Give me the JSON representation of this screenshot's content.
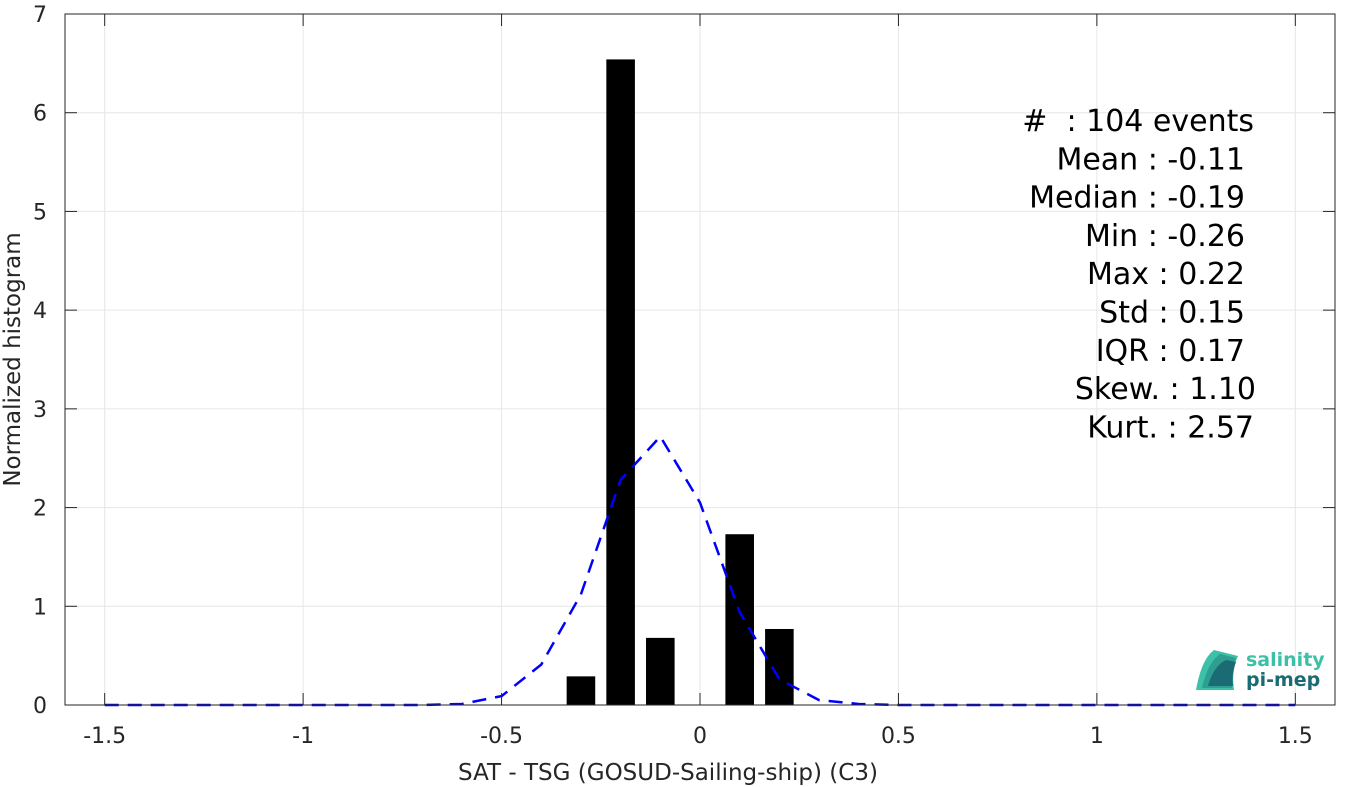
{
  "chart_data": {
    "type": "bar",
    "xlabel": "SAT - TSG (GOSUD-Sailing-ship) (C3)",
    "ylabel": "Normalized histogram",
    "xlim": [
      -1.6,
      1.6
    ],
    "ylim": [
      0,
      7
    ],
    "xticks": [
      -1.5,
      -1,
      -0.5,
      0,
      0.5,
      1,
      1.5
    ],
    "xtick_labels": [
      "-1.5",
      "-1",
      "-0.5",
      "0",
      "0.5",
      "1",
      "1.5"
    ],
    "yticks": [
      0,
      1,
      2,
      3,
      4,
      5,
      6,
      7
    ],
    "ytick_labels": [
      "0",
      "1",
      "2",
      "3",
      "4",
      "5",
      "6",
      "7"
    ],
    "grid": true,
    "bin_width": 0.1,
    "bars": {
      "x": [
        -0.3,
        -0.2,
        -0.1,
        0.0,
        0.1,
        0.2
      ],
      "values": [
        0.29,
        6.54,
        0.68,
        0.0,
        1.73,
        0.77
      ],
      "color": "#000000"
    },
    "fit_curve": {
      "style": "dashed",
      "color": "#0000ff",
      "x": [
        -1.5,
        -1.4,
        -1.3,
        -1.2,
        -1.1,
        -1.0,
        -0.9,
        -0.8,
        -0.7,
        -0.6,
        -0.5,
        -0.4,
        -0.3,
        -0.2,
        -0.1,
        0.0,
        0.1,
        0.2,
        0.3,
        0.4,
        0.5,
        0.6,
        0.7,
        0.8,
        0.9,
        1.0,
        1.1,
        1.2,
        1.3,
        1.4,
        1.5
      ],
      "y": [
        0,
        0,
        0,
        0,
        0,
        0,
        0,
        0,
        0,
        0.01,
        0.09,
        0.41,
        1.12,
        2.28,
        2.72,
        2.05,
        0.94,
        0.26,
        0.05,
        0.01,
        0,
        0,
        0,
        0,
        0,
        0,
        0,
        0,
        0,
        0,
        0
      ]
    },
    "stats": [
      "#  : 104 events",
      "Mean : -0.11",
      "Median : -0.19",
      "Min : -0.26",
      "Max : 0.22",
      "Std : 0.15",
      "IQR : 0.17",
      "Skew. : 1.10",
      "Kurt. : 2.57"
    ]
  },
  "logo": {
    "line1": "salinity",
    "line2": "pi-mep",
    "color_light": "#3cc0a8",
    "color_dark": "#1a6b73"
  }
}
